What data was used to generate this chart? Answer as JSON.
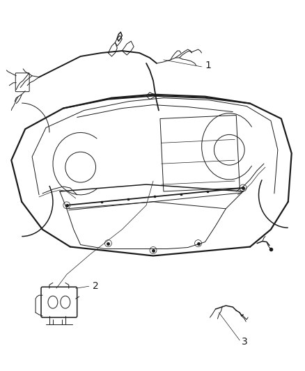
{
  "background_color": "#ffffff",
  "line_color": "#1a1a1a",
  "fig_width": 4.39,
  "fig_height": 5.33,
  "dpi": 100,
  "label1": "1",
  "label2": "2",
  "label3": "3",
  "gray": "#888888",
  "darkgray": "#555555"
}
